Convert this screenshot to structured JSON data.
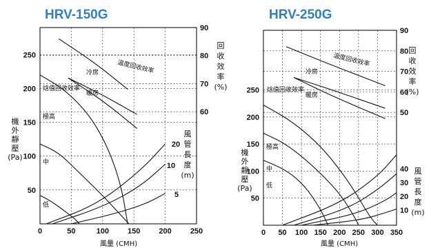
{
  "chart_data": [
    {
      "type": "line",
      "title": "HRV-150G",
      "xlabel": "風量 (CMH)",
      "ylabel": [
        "機",
        "外",
        "靜",
        "壓",
        "(Pa)"
      ],
      "y2label": [
        "回",
        "收",
        "效",
        "率",
        "(%)"
      ],
      "y3label": [
        "風",
        "管",
        "長",
        "度",
        "(m)"
      ],
      "xlim": [
        0,
        250
      ],
      "ylim": [
        0,
        290
      ],
      "xticks": [
        "0",
        "50",
        "100",
        "150",
        "200",
        "250"
      ],
      "yticks": [
        [
          "50",
          50
        ],
        [
          "100",
          100
        ],
        [
          "150",
          150
        ],
        [
          "200",
          200
        ],
        [
          "250",
          250
        ]
      ],
      "y2ticks": [
        [
          "60",
          60
        ],
        [
          "70",
          70
        ],
        [
          "80",
          80
        ],
        [
          "90",
          90
        ]
      ],
      "y2lim": [
        20,
        90
      ],
      "grid": true,
      "pressure_curves": [
        {
          "name": "極高",
          "points": [
            [
              0,
              220
            ],
            [
              40,
              198
            ],
            [
              80,
              160
            ],
            [
              110,
              110
            ],
            [
              130,
              55
            ],
            [
              140,
              0
            ]
          ]
        },
        {
          "name": "中",
          "points": [
            [
              0,
              118
            ],
            [
              30,
              105
            ],
            [
              60,
              78
            ],
            [
              100,
              42
            ],
            [
              130,
              12
            ],
            [
              142,
              0
            ]
          ]
        },
        {
          "name": "低",
          "points": [
            [
              0,
              42
            ],
            [
              15,
              35
            ],
            [
              35,
              22
            ],
            [
              55,
              8
            ],
            [
              63,
              0
            ]
          ]
        }
      ],
      "efficiency_curves": [
        {
          "name": "溫度回收效率",
          "points": [
            [
              30,
              86
            ],
            [
              90,
              77
            ],
            [
              140,
              68
            ]
          ],
          "unit": "%"
        },
        {
          "name": "冷房",
          "points": [
            [
              45,
              72
            ],
            [
              100,
              66
            ],
            [
              155,
              59
            ]
          ],
          "unit": "%"
        },
        {
          "name": "暖房",
          "points": [
            [
              45,
              72
            ],
            [
              100,
              64
            ],
            [
              155,
              54
            ]
          ],
          "unit": "%"
        },
        {
          "name": "焓值回收效率",
          "points": [],
          "unit": "%"
        }
      ],
      "duct_curves": [
        {
          "name": "20",
          "points": [
            [
              10,
              0
            ],
            [
              90,
              28
            ],
            [
              160,
              78
            ],
            [
              200,
              118
            ]
          ]
        },
        {
          "name": "10",
          "points": [
            [
              20,
              0
            ],
            [
              100,
              25
            ],
            [
              160,
              55
            ],
            [
              200,
              88
            ]
          ]
        },
        {
          "name": "5",
          "points": [
            [
              50,
              0
            ],
            [
              120,
              15
            ],
            [
              170,
              30
            ],
            [
              200,
              45
            ]
          ]
        }
      ],
      "other_labels": [
        "冷房",
        "暖房",
        "溫度回收效率",
        "焓值回收效率"
      ]
    },
    {
      "type": "line",
      "title": "HRV-250G",
      "xlabel": "風量 (CMH)",
      "ylabel": [
        "機",
        "外",
        "靜",
        "壓",
        "(Pa)"
      ],
      "y2label": [
        "回",
        "收",
        "效",
        "率",
        "(%)"
      ],
      "y3label": [
        "風",
        "管",
        "長",
        "度",
        "(m)"
      ],
      "xlim": [
        0,
        350
      ],
      "ylim": [
        0,
        360
      ],
      "xticks": [
        "0",
        "50",
        "100",
        "150",
        "200",
        "250",
        "300",
        "350"
      ],
      "yticks": [
        [
          "50",
          50
        ],
        [
          "100",
          100
        ],
        [
          "150",
          150
        ],
        [
          "200",
          200
        ],
        [
          "250",
          250
        ]
      ],
      "y2ticks": [
        [
          "50",
          50
        ],
        [
          "60",
          60
        ],
        [
          "70",
          70
        ],
        [
          "80",
          80
        ],
        [
          "90",
          90
        ]
      ],
      "y2lim": [
        -5,
        90
      ],
      "y3ticks": [
        [
          "10",
          10
        ],
        [
          "20",
          20
        ],
        [
          "30",
          30
        ],
        [
          "40",
          40
        ]
      ],
      "grid": true,
      "pressure_curves": [
        {
          "name": "極高",
          "points": [
            [
              0,
              222
            ],
            [
              80,
              190
            ],
            [
              160,
              140
            ],
            [
              230,
              75
            ],
            [
              280,
              15
            ],
            [
              300,
              0
            ]
          ]
        },
        {
          "name": "中",
          "points": [
            [
              0,
              170
            ],
            [
              60,
              150
            ],
            [
              130,
              110
            ],
            [
              200,
              60
            ],
            [
              240,
              15
            ],
            [
              250,
              0
            ]
          ]
        },
        {
          "name": "低",
          "points": [
            [
              0,
              120
            ],
            [
              60,
              102
            ],
            [
              110,
              72
            ],
            [
              150,
              30
            ],
            [
              170,
              0
            ]
          ]
        }
      ],
      "efficiency_curves": [
        {
          "name": "溫度回收效率",
          "points": [
            [
              60,
              82
            ],
            [
              180,
              73
            ],
            [
              320,
              63
            ]
          ],
          "unit": "%"
        },
        {
          "name": "冷房",
          "points": [
            [
              80,
              67
            ],
            [
              180,
              61
            ],
            [
              320,
              52
            ]
          ],
          "unit": "%"
        },
        {
          "name": "暖房",
          "points": [
            [
              80,
              67
            ],
            [
              180,
              58
            ],
            [
              320,
              47
            ]
          ],
          "unit": "%"
        },
        {
          "name": "焓值回收效率",
          "points": [],
          "unit": "%"
        }
      ],
      "duct_curves": [
        {
          "name": "40",
          "points": [
            [
              50,
              0
            ],
            [
              200,
              40
            ],
            [
              300,
              90
            ],
            [
              350,
              130
            ]
          ]
        },
        {
          "name": "30",
          "points": [
            [
              80,
              0
            ],
            [
              220,
              30
            ],
            [
              300,
              65
            ],
            [
              350,
              95
            ]
          ]
        },
        {
          "name": "20",
          "points": [
            [
              100,
              0
            ],
            [
              240,
              20
            ],
            [
              320,
              45
            ],
            [
              350,
              60
            ]
          ]
        },
        {
          "name": "10",
          "points": [
            [
              130,
              0
            ],
            [
              260,
              10
            ],
            [
              330,
              25
            ],
            [
              350,
              30
            ]
          ]
        }
      ],
      "other_labels": [
        "冷房",
        "暖房",
        "溫度回收效率",
        "焓值回收效率"
      ]
    }
  ]
}
